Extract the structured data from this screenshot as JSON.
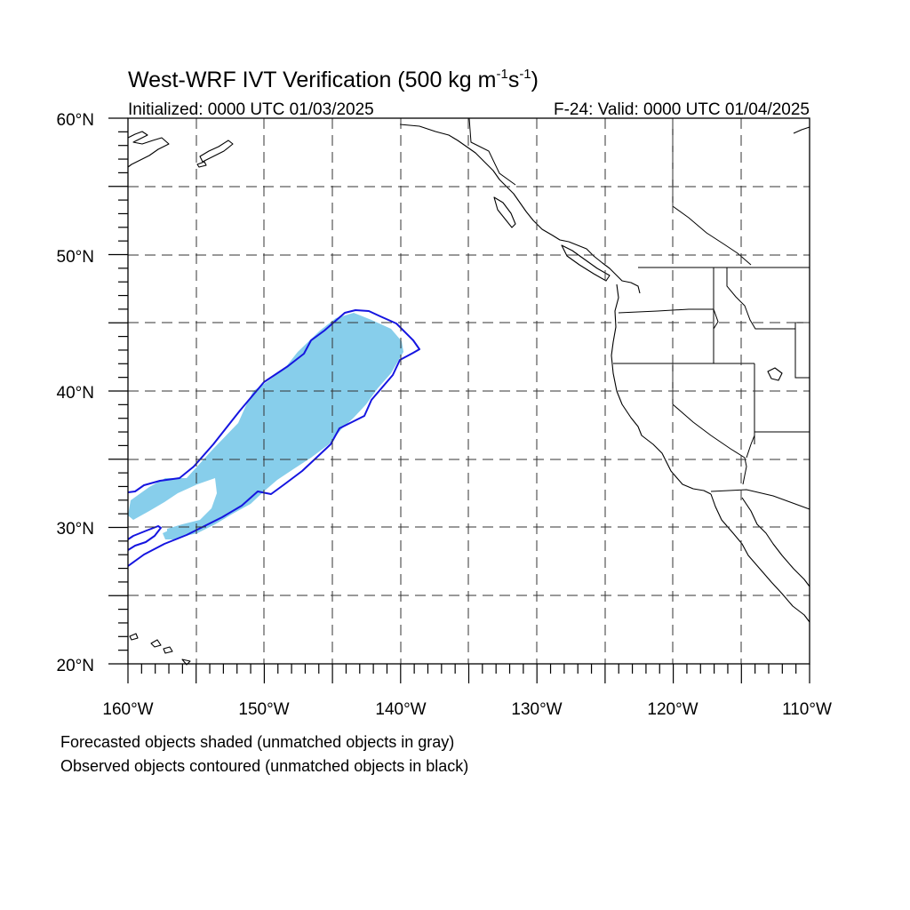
{
  "title": {
    "main": "West-WRF IVT Verification (500 kg m",
    "exp1": "-1",
    "mid": "s",
    "exp2": "-1",
    "close": ")"
  },
  "init_label": "Initialized: 0000 UTC 01/03/2025",
  "valid_label": "F-24: Valid: 0000 UTC 01/04/2025",
  "lat_labels": [
    "60°N",
    "50°N",
    "40°N",
    "30°N",
    "20°N"
  ],
  "lon_labels": [
    "160°W",
    "150°W",
    "140°W",
    "130°W",
    "120°W",
    "110°W"
  ],
  "notes": {
    "forecast": "Forecasted objects shaded (unmatched objects in gray)",
    "observed": "Observed objects contoured (unmatched objects in black)"
  },
  "colors": {
    "forecast_fill": "#87ceeb",
    "observed_contour": "#1515e0",
    "grid": "#333333"
  },
  "map": {
    "projection": "cylindrical equidistant",
    "lon_range": [
      -160,
      -110
    ],
    "lat_range": [
      20,
      60
    ],
    "grid_spacing_deg": 5
  }
}
